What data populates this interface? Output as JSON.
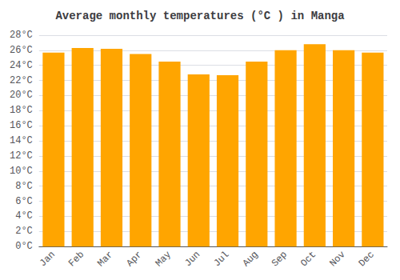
{
  "chart_data": {
    "type": "bar",
    "title": "Average monthly temperatures (°C ) in Manga",
    "categories": [
      "Jan",
      "Feb",
      "Mar",
      "Apr",
      "May",
      "Jun",
      "Jul",
      "Aug",
      "Sep",
      "Oct",
      "Nov",
      "Dec"
    ],
    "values": [
      25.7,
      26.3,
      26.2,
      25.5,
      24.5,
      22.8,
      22.7,
      24.5,
      26.0,
      26.8,
      26.0,
      25.7
    ],
    "color": "#FFA500",
    "ylim": [
      0,
      28
    ],
    "yticks": [
      {
        "value": 0,
        "label": "0°C"
      },
      {
        "value": 2,
        "label": "2°C"
      },
      {
        "value": 4,
        "label": "4°C"
      },
      {
        "value": 6,
        "label": "6°C"
      },
      {
        "value": 8,
        "label": "8°C"
      },
      {
        "value": 10,
        "label": "10°C"
      },
      {
        "value": 12,
        "label": "12°C"
      },
      {
        "value": 14,
        "label": "14°C"
      },
      {
        "value": 16,
        "label": "16°C"
      },
      {
        "value": 18,
        "label": "18°C"
      },
      {
        "value": 20,
        "label": "20°C"
      },
      {
        "value": 22,
        "label": "22°C"
      },
      {
        "value": 24,
        "label": "24°C"
      },
      {
        "value": 26,
        "label": "26°C"
      },
      {
        "value": 28,
        "label": "28°C"
      }
    ],
    "grid": true
  }
}
